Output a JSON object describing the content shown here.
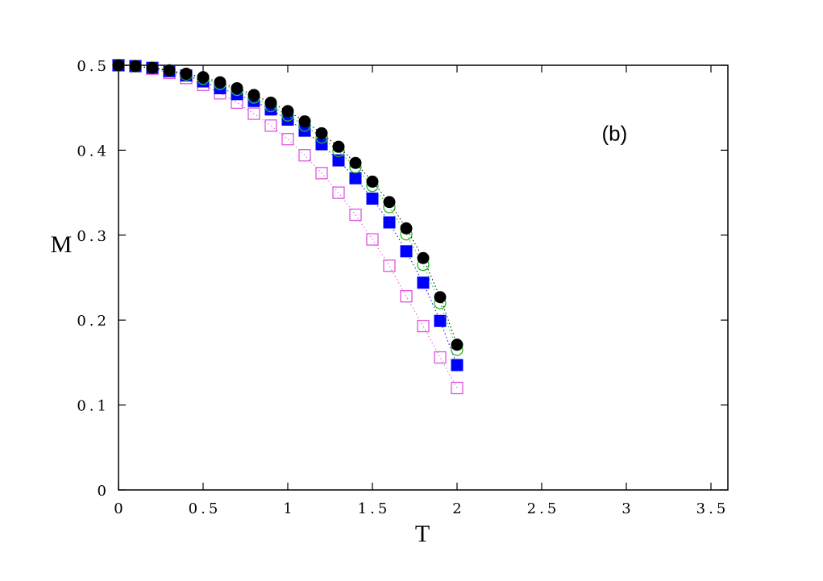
{
  "chart_data": {
    "type": "scatter",
    "xlabel": "T",
    "ylabel": "M",
    "annotation": "(b)",
    "xlim": [
      0,
      3.6
    ],
    "ylim": [
      0,
      0.5
    ],
    "x_ticks": [
      0,
      0.5,
      1,
      1.5,
      2,
      2.5,
      3,
      3.5
    ],
    "x_tick_labels": [
      "0",
      "0.5",
      "1",
      "1.5",
      "2",
      "2.5",
      "3",
      "3.5"
    ],
    "y_ticks": [
      0,
      0.1,
      0.2,
      0.3,
      0.4,
      0.5
    ],
    "y_tick_labels": [
      "0",
      "0.1",
      "0.2",
      "0.3",
      "0.4",
      "0.5"
    ],
    "grid": false,
    "series": [
      {
        "marker": "square-open",
        "color": "#e055e0",
        "line": "dotted",
        "x": [
          0.0,
          0.1,
          0.2,
          0.3,
          0.4,
          0.5,
          0.6,
          0.7,
          0.8,
          0.9,
          1.0,
          1.1,
          1.2,
          1.3,
          1.4,
          1.5,
          1.6,
          1.7,
          1.8,
          1.9,
          2.0
        ],
        "y": [
          0.5,
          0.499,
          0.496,
          0.491,
          0.485,
          0.477,
          0.467,
          0.456,
          0.443,
          0.429,
          0.413,
          0.394,
          0.373,
          0.35,
          0.324,
          0.295,
          0.264,
          0.228,
          0.193,
          0.156,
          0.12
        ]
      },
      {
        "marker": "square-filled",
        "color": "#0000ff",
        "line": "dotted",
        "x": [
          0.0,
          0.1,
          0.2,
          0.3,
          0.4,
          0.5,
          0.6,
          0.7,
          0.8,
          0.9,
          1.0,
          1.1,
          1.2,
          1.3,
          1.4,
          1.5,
          1.6,
          1.7,
          1.8,
          1.9,
          2.0
        ],
        "y": [
          0.5,
          0.499,
          0.497,
          0.493,
          0.488,
          0.481,
          0.473,
          0.466,
          0.458,
          0.448,
          0.436,
          0.423,
          0.407,
          0.388,
          0.367,
          0.343,
          0.315,
          0.281,
          0.244,
          0.199,
          0.147
        ]
      },
      {
        "marker": "circle-open",
        "color": "#22bb22",
        "line": "dotted",
        "x": [
          0.0,
          0.1,
          0.2,
          0.3,
          0.4,
          0.5,
          0.6,
          0.7,
          0.8,
          0.9,
          1.0,
          1.1,
          1.2,
          1.3,
          1.4,
          1.5,
          1.6,
          1.7,
          1.8,
          1.9,
          2.0
        ],
        "y": [
          0.5,
          0.499,
          0.497,
          0.494,
          0.489,
          0.484,
          0.478,
          0.471,
          0.462,
          0.452,
          0.441,
          0.429,
          0.415,
          0.399,
          0.38,
          0.358,
          0.333,
          0.301,
          0.265,
          0.22,
          0.165
        ]
      },
      {
        "marker": "circle-filled",
        "color": "#000000",
        "line": "dotted",
        "x": [
          0.0,
          0.1,
          0.2,
          0.3,
          0.4,
          0.5,
          0.6,
          0.7,
          0.8,
          0.9,
          1.0,
          1.1,
          1.2,
          1.3,
          1.4,
          1.5,
          1.6,
          1.7,
          1.8,
          1.9,
          2.0
        ],
        "y": [
          0.5,
          0.499,
          0.497,
          0.494,
          0.49,
          0.486,
          0.48,
          0.473,
          0.465,
          0.456,
          0.446,
          0.434,
          0.42,
          0.404,
          0.385,
          0.363,
          0.339,
          0.308,
          0.273,
          0.227,
          0.171
        ]
      }
    ]
  }
}
